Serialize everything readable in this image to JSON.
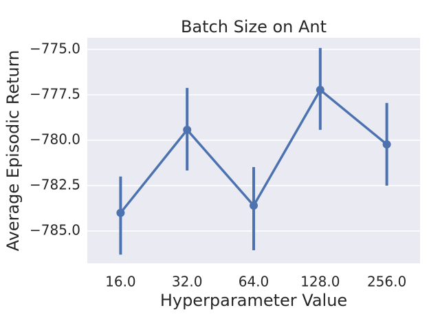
{
  "chart_data": {
    "type": "pointplot",
    "title": "Batch Size on Ant",
    "xlabel": "Hyperparameter Value",
    "ylabel": "Average Episodic Return",
    "categories": [
      "16.0",
      "32.0",
      "64.0",
      "128.0",
      "256.0"
    ],
    "series": [
      {
        "color": "#4c72b0",
        "values": [
          -784.0,
          -779.43,
          -783.6,
          -777.23,
          -780.23
        ],
        "lower": [
          -786.3,
          -781.67,
          -786.06,
          -779.43,
          -782.5
        ],
        "upper": [
          -782.0,
          -777.12,
          -781.48,
          -774.92,
          -777.95
        ]
      }
    ],
    "ylim": [
      -786.78,
      -774.36
    ],
    "yticks": [
      {
        "value": -775,
        "label": "−775.0"
      },
      {
        "value": -777.5,
        "label": "−777.5"
      },
      {
        "value": -780,
        "label": "−780.0"
      },
      {
        "value": -782.5,
        "label": "−782.5"
      },
      {
        "value": -785,
        "label": "−785.0"
      }
    ],
    "grid": true
  }
}
